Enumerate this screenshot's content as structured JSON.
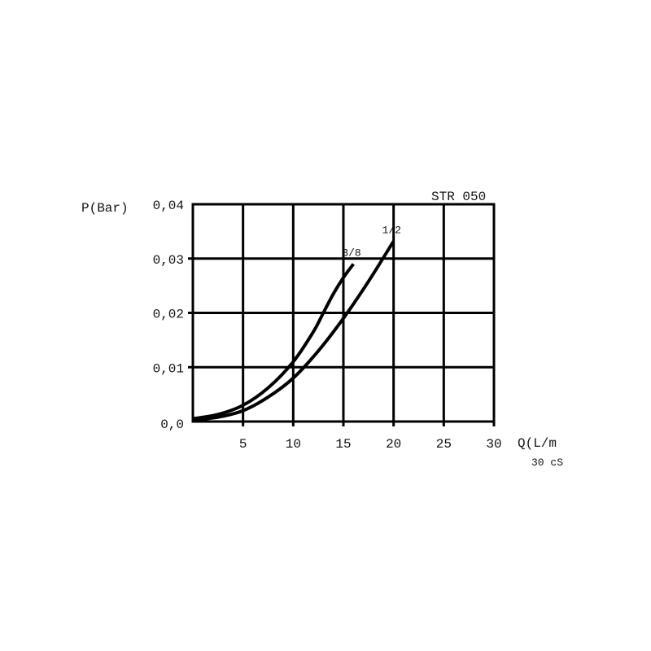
{
  "chart_data": {
    "type": "line",
    "title": "STR 050",
    "ylabel": "P(Bar)",
    "xlabel": "Q(L/m",
    "note": "30 cS",
    "xlim": [
      0,
      30
    ],
    "ylim": [
      0,
      0.04
    ],
    "x_ticks": [
      5,
      10,
      15,
      20,
      25,
      30
    ],
    "x_tick_labels": [
      "5",
      "10",
      "15",
      "20",
      "25",
      "30"
    ],
    "y_ticks": [
      0,
      0.01,
      0.02,
      0.03,
      0.04
    ],
    "y_tick_labels": [
      "0,0",
      "0,01",
      "0,02",
      "0,03",
      "0,04"
    ],
    "grid": true,
    "series": [
      {
        "name": "3/8",
        "x": [
          0,
          2.5,
          5,
          7.5,
          10,
          12,
          13,
          14,
          15,
          16
        ],
        "y": [
          0.0005,
          0.0013,
          0.003,
          0.0062,
          0.011,
          0.0165,
          0.02,
          0.0235,
          0.0265,
          0.029
        ]
      },
      {
        "name": "1/2",
        "x": [
          0,
          2.5,
          5,
          7.5,
          10,
          12.5,
          15,
          17.5,
          20
        ],
        "y": [
          0.0003,
          0.0008,
          0.002,
          0.0045,
          0.008,
          0.013,
          0.019,
          0.0258,
          0.0332
        ]
      }
    ],
    "colors": {
      "line": "#000000",
      "grid": "#000000"
    }
  }
}
